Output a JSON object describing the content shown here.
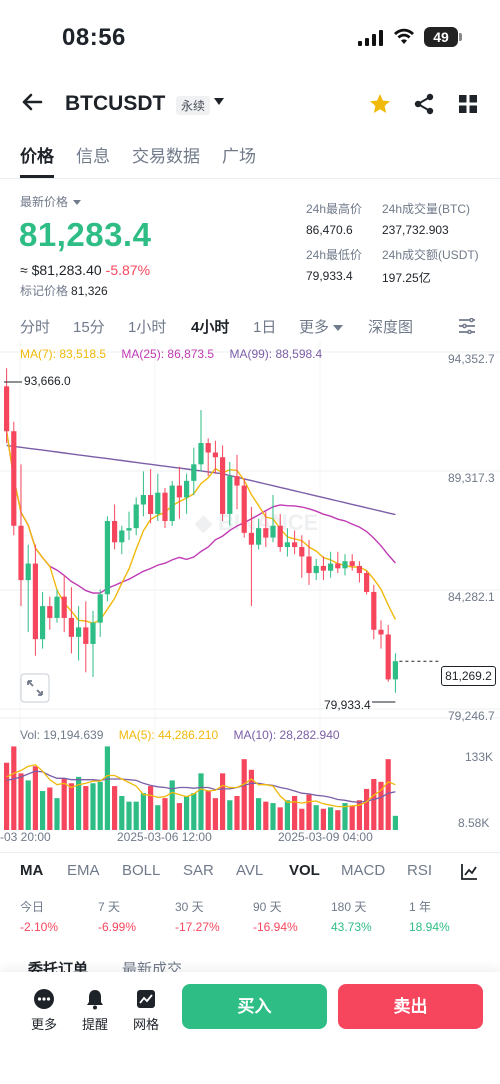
{
  "status_bar": {
    "time": "08:56",
    "battery": "49"
  },
  "header": {
    "symbol": "BTCUSDT",
    "contract_type": "永续"
  },
  "tabs": [
    {
      "label": "价格",
      "active": true
    },
    {
      "label": "信息",
      "active": false
    },
    {
      "label": "交易数据",
      "active": false
    },
    {
      "label": "广场",
      "active": false
    }
  ],
  "price": {
    "latest_label": "最新价格",
    "last_price": "81,283.4",
    "usd_value": "≈ $81,283.40",
    "change": "-5.87%",
    "mark_label": "标记价格",
    "mark_price": "81,326"
  },
  "stats": {
    "high_label": "24h最高价",
    "high": "86,470.6",
    "vol_btc_label": "24h成交量(BTC)",
    "vol_btc": "237,732.903",
    "low_label": "24h最低价",
    "low": "79,933.4",
    "vol_usdt_label": "24h成交额(USDT)",
    "vol_usdt": "197.25亿"
  },
  "timeframes": [
    "分时",
    "15分",
    "1小时",
    "4小时",
    "1日",
    "更多",
    "深度图"
  ],
  "active_timeframe": "4小时",
  "ma_legend": {
    "ma7": "MA(7): 83,518.5",
    "ma25": "MA(25): 86,873.5",
    "ma99": "MA(99): 88,598.4"
  },
  "price_axis": [
    "94,352.7",
    "89,317.3",
    "84,282.1",
    "79,246.7"
  ],
  "current_price_tag": "81,269.2",
  "high_marker": "93,666.0",
  "low_marker": "79,933.4",
  "volume_legend": {
    "vol": "Vol: 19,194.639",
    "ma5": "MA(5): 44,286.210",
    "ma10": "MA(10): 28,282.940"
  },
  "volume_axis": [
    "133K",
    "8.58K"
  ],
  "x_axis": [
    "-03 20:00",
    "2025-03-06 12:00",
    "2025-03-09 04:00"
  ],
  "indicators": [
    "MA",
    "EMA",
    "BOLL",
    "SAR",
    "AVL",
    "VOL",
    "MACD",
    "RSI"
  ],
  "active_main_indicator": "MA",
  "active_sub_indicator": "VOL",
  "performance": [
    {
      "label": "今日",
      "value": "-2.10%"
    },
    {
      "label": "7 天",
      "value": "-6.99%"
    },
    {
      "label": "30 天",
      "value": "-17.27%"
    },
    {
      "label": "90 天",
      "value": "-16.94%"
    },
    {
      "label": "180 天",
      "value": "43.73%"
    },
    {
      "label": "1 年",
      "value": "18.94%"
    }
  ],
  "order_tabs": [
    "委托订单",
    "最新成交"
  ],
  "bottom_bar": {
    "more": "更多",
    "alert": "提醒",
    "grid": "网格",
    "buy": "买入",
    "sell": "卖出"
  },
  "colors": {
    "up": "#2ebd85",
    "down": "#f6465d",
    "ma7": "#f0b90b",
    "ma25": "#c03bb4",
    "ma99": "#7b5ea7"
  },
  "chart_data": {
    "type": "candlestick",
    "interval": "4h",
    "ylim": [
      79246.7,
      94352.7
    ],
    "high": 93666.0,
    "low": 79933.4,
    "last": 81269.2,
    "candles": [
      [
        92900,
        93666,
        90500,
        91000
      ],
      [
        91000,
        91400,
        86600,
        87000
      ],
      [
        87000,
        89600,
        83600,
        84700
      ],
      [
        84700,
        86200,
        82500,
        85400
      ],
      [
        85400,
        86200,
        81500,
        82200
      ],
      [
        82200,
        84200,
        81800,
        83600
      ],
      [
        83600,
        84000,
        82600,
        83100
      ],
      [
        83100,
        84300,
        82900,
        84000
      ],
      [
        84000,
        84900,
        82500,
        83100
      ],
      [
        83100,
        84400,
        81600,
        82300
      ],
      [
        82300,
        83600,
        81300,
        82700
      ],
      [
        82700,
        83800,
        80800,
        82000
      ],
      [
        82000,
        83400,
        80600,
        82900
      ],
      [
        82900,
        84300,
        82300,
        84100
      ],
      [
        84100,
        87400,
        83800,
        87200
      ],
      [
        87200,
        87900,
        86000,
        86300
      ],
      [
        86300,
        87000,
        85800,
        86800
      ],
      [
        86800,
        87600,
        86400,
        86900
      ],
      [
        86900,
        88200,
        86600,
        87900
      ],
      [
        87900,
        89300,
        87400,
        88300
      ],
      [
        88300,
        89400,
        87100,
        87500
      ],
      [
        87500,
        89200,
        87200,
        88400
      ],
      [
        88400,
        88600,
        86900,
        87200
      ],
      [
        87200,
        88900,
        87000,
        88700
      ],
      [
        88700,
        89500,
        87300,
        88200
      ],
      [
        88200,
        89200,
        87500,
        88900
      ],
      [
        88900,
        90300,
        88300,
        89600
      ],
      [
        89600,
        91900,
        89300,
        90500
      ],
      [
        90500,
        90700,
        89100,
        90100
      ],
      [
        90100,
        90600,
        89200,
        89900
      ],
      [
        89900,
        90400,
        87200,
        87500
      ],
      [
        87500,
        89700,
        87000,
        89100
      ],
      [
        89100,
        90000,
        87700,
        88700
      ],
      [
        88700,
        89000,
        86500,
        86700
      ],
      [
        86700,
        87800,
        83600,
        86200
      ],
      [
        86200,
        87300,
        86000,
        86900
      ],
      [
        86900,
        87600,
        86100,
        86500
      ],
      [
        86500,
        88300,
        86300,
        87000
      ],
      [
        87000,
        87500,
        85900,
        86100
      ],
      [
        86100,
        86900,
        85700,
        86300
      ],
      [
        86300,
        86800,
        85800,
        86100
      ],
      [
        86100,
        86600,
        84800,
        85700
      ],
      [
        85700,
        86400,
        84500,
        85000
      ],
      [
        85000,
        85600,
        84700,
        85300
      ],
      [
        85300,
        85700,
        84700,
        85100
      ],
      [
        85100,
        85900,
        84800,
        85400
      ],
      [
        85400,
        85900,
        85000,
        85200
      ],
      [
        85200,
        85800,
        84900,
        85500
      ],
      [
        85500,
        85800,
        85100,
        85300
      ],
      [
        85300,
        85500,
        84600,
        85000
      ],
      [
        85000,
        85100,
        84100,
        84200
      ],
      [
        84200,
        84500,
        82200,
        82600
      ],
      [
        82600,
        83000,
        81800,
        82400
      ],
      [
        82400,
        82800,
        80400,
        80500
      ],
      [
        80500,
        81600,
        79933.4,
        81269
      ]
    ],
    "volumes": [
      95,
      118,
      80,
      70,
      90,
      55,
      60,
      45,
      72,
      66,
      75,
      62,
      66,
      68,
      118,
      62,
      48,
      40,
      40,
      52,
      62,
      35,
      45,
      70,
      38,
      48,
      52,
      80,
      55,
      45,
      80,
      42,
      48,
      100,
      85,
      45,
      40,
      38,
      32,
      42,
      48,
      30,
      50,
      35,
      30,
      32,
      28,
      38,
      34,
      42,
      58,
      72,
      68,
      100,
      20
    ],
    "volume_ylim": [
      0,
      133000
    ],
    "vol_ma5": [
      75,
      80,
      84,
      90,
      92,
      83,
      71,
      64,
      66,
      60,
      64,
      66,
      69,
      69,
      77,
      77,
      72,
      67,
      62,
      50,
      49,
      46,
      47,
      53,
      50,
      47,
      51,
      58,
      55,
      56,
      63,
      60,
      60,
      65,
      72,
      64,
      64,
      62,
      48,
      39,
      40,
      38,
      40,
      41,
      37,
      35,
      33,
      33,
      34,
      35,
      40,
      49,
      56,
      68,
      64
    ],
    "vol_ma10": [
      70,
      72,
      75,
      79,
      83,
      82,
      77,
      73,
      73,
      71,
      71,
      71,
      71,
      70,
      72,
      72,
      72,
      71,
      70,
      66,
      63,
      61,
      60,
      58,
      60,
      60,
      59,
      60,
      60,
      57,
      58,
      58,
      60,
      63,
      66,
      66,
      64,
      63,
      60,
      58,
      55,
      52,
      51,
      49,
      48,
      46,
      43,
      42,
      40,
      39,
      41,
      43,
      46,
      52,
      54
    ]
  }
}
